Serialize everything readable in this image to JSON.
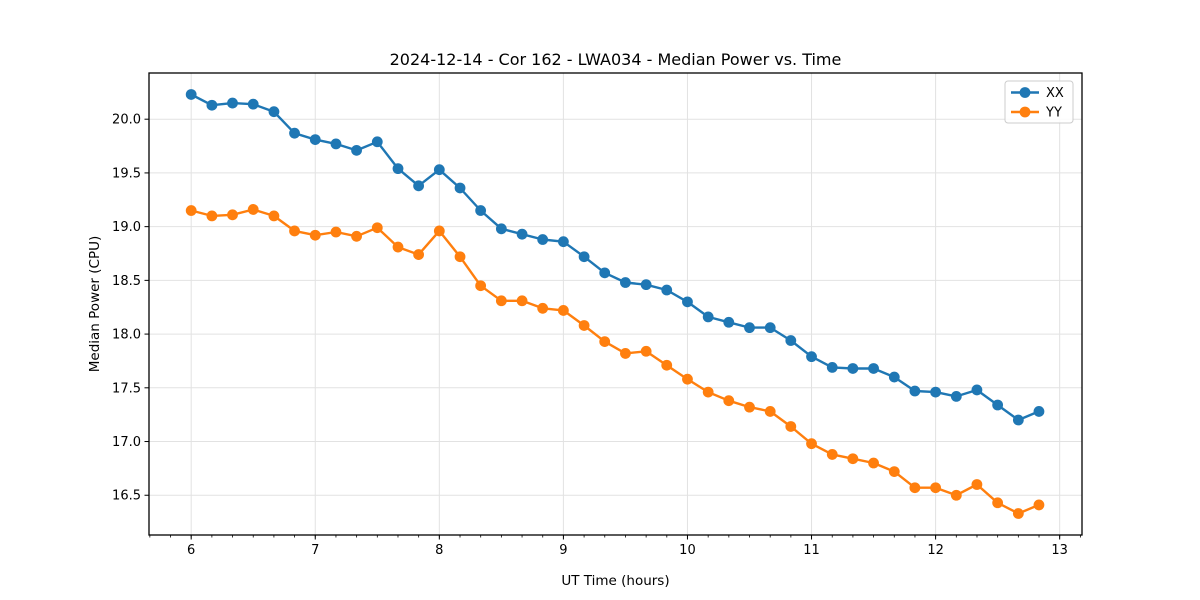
{
  "chart_data": {
    "type": "line",
    "title": "2024-12-14 - Cor 162 - LWA034 - Median Power vs. Time",
    "xlabel": "UT Time (hours)",
    "ylabel": "Median Power (CPU)",
    "xlim": [
      5.66,
      13.18
    ],
    "ylim": [
      16.13,
      20.43
    ],
    "xticks": [
      6,
      7,
      8,
      9,
      10,
      11,
      12,
      13
    ],
    "yticks": [
      16.5,
      17.0,
      17.5,
      18.0,
      18.5,
      19.0,
      19.5,
      20.0
    ],
    "minor_xtick_step_hours": 0.16667,
    "grid": true,
    "legend_position": "upper right",
    "marker": "circle",
    "x": [
      6.0,
      6.167,
      6.333,
      6.5,
      6.667,
      6.833,
      7.0,
      7.167,
      7.333,
      7.5,
      7.667,
      7.833,
      8.0,
      8.167,
      8.333,
      8.5,
      8.667,
      8.833,
      9.0,
      9.167,
      9.333,
      9.5,
      9.667,
      9.833,
      10.0,
      10.167,
      10.333,
      10.5,
      10.667,
      10.833,
      11.0,
      11.167,
      11.333,
      11.5,
      11.667,
      11.833,
      12.0,
      12.167,
      12.333,
      12.5,
      12.667,
      12.833
    ],
    "series": [
      {
        "name": "XX",
        "color": "#1f77b4",
        "values": [
          20.23,
          20.13,
          20.15,
          20.14,
          20.07,
          19.87,
          19.81,
          19.77,
          19.71,
          19.79,
          19.54,
          19.38,
          19.53,
          19.36,
          19.15,
          18.98,
          18.93,
          18.88,
          18.86,
          18.72,
          18.57,
          18.48,
          18.46,
          18.41,
          18.3,
          18.16,
          18.11,
          18.06,
          18.06,
          17.94,
          17.79,
          17.69,
          17.68,
          17.68,
          17.6,
          17.47,
          17.46,
          17.42,
          17.48,
          17.34,
          17.2,
          17.28
        ]
      },
      {
        "name": "YY",
        "color": "#ff7f0e",
        "values": [
          19.15,
          19.1,
          19.11,
          19.16,
          19.1,
          18.96,
          18.92,
          18.95,
          18.91,
          18.99,
          18.81,
          18.74,
          18.96,
          18.72,
          18.45,
          18.31,
          18.31,
          18.24,
          18.22,
          18.08,
          17.93,
          17.82,
          17.84,
          17.71,
          17.58,
          17.46,
          17.38,
          17.32,
          17.28,
          17.14,
          16.98,
          16.88,
          16.84,
          16.8,
          16.72,
          16.57,
          16.57,
          16.5,
          16.6,
          16.43,
          16.33,
          16.41
        ]
      }
    ],
    "style": {
      "grid_color": "#e2e2e2",
      "spine_color": "#000000",
      "tick_color": "#000000",
      "legend_border_color": "#cccccc",
      "background": "#ffffff"
    }
  }
}
